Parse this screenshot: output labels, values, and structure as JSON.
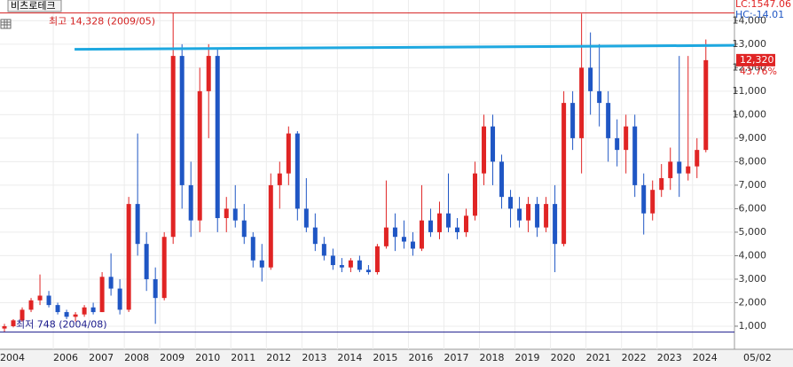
{
  "chart_data": {
    "type": "candlestick",
    "title": "비츠로테크",
    "x": [
      2004.625,
      2004.875,
      2005.125,
      2005.375,
      2005.625,
      2005.875,
      2006.125,
      2006.375,
      2006.625,
      2006.875,
      2007.125,
      2007.375,
      2007.625,
      2007.875,
      2008.125,
      2008.375,
      2008.625,
      2008.875,
      2009.125,
      2009.375,
      2009.625,
      2009.875,
      2010.125,
      2010.375,
      2010.625,
      2010.875,
      2011.125,
      2011.375,
      2011.625,
      2011.875,
      2012.125,
      2012.375,
      2012.625,
      2012.875,
      2013.125,
      2013.375,
      2013.625,
      2013.875,
      2014.125,
      2014.375,
      2014.625,
      2014.875,
      2015.125,
      2015.375,
      2015.625,
      2015.875,
      2016.125,
      2016.375,
      2016.625,
      2016.875,
      2017.125,
      2017.375,
      2017.625,
      2017.875,
      2018.125,
      2018.375,
      2018.625,
      2018.875,
      2019.125,
      2019.375,
      2019.625,
      2019.875,
      2020.125,
      2020.375,
      2020.625,
      2020.875,
      2021.125,
      2021.375,
      2021.625,
      2021.875,
      2022.125,
      2022.375,
      2022.625,
      2022.875,
      2023.125,
      2023.375,
      2023.625,
      2023.875,
      2024.125,
      2024.375
    ],
    "open": [
      900,
      1000,
      1250,
      1700,
      2100,
      2300,
      1900,
      1600,
      1400,
      1500,
      1800,
      1600,
      3100,
      2600,
      1700,
      6200,
      4500,
      3000,
      2200,
      4800,
      12500,
      7000,
      5500,
      11000,
      12500,
      5600,
      6000,
      5500,
      4800,
      3800,
      3500,
      7000,
      7500,
      9200,
      6000,
      5200,
      4500,
      4000,
      3600,
      3500,
      3800,
      3400,
      3300,
      4400,
      5200,
      4800,
      4600,
      4300,
      5500,
      5000,
      5800,
      5200,
      5000,
      5700,
      7500,
      9500,
      8000,
      6500,
      6000,
      5500,
      6200,
      5200,
      6200,
      4500,
      10500,
      9000,
      12000,
      11000,
      10500,
      9000,
      8500,
      9500,
      7000,
      5800,
      6800,
      7300,
      8000,
      7500,
      7800,
      8500
    ],
    "high": [
      1100,
      1300,
      1800,
      2200,
      3200,
      2500,
      2000,
      1700,
      1600,
      1900,
      2000,
      3300,
      4100,
      3000,
      6500,
      9200,
      5000,
      3500,
      5000,
      14328,
      13000,
      8000,
      12000,
      13000,
      12800,
      6500,
      7000,
      6200,
      5000,
      4500,
      7500,
      8000,
      9500,
      9300,
      7300,
      5800,
      4800,
      4300,
      3900,
      3900,
      4000,
      3600,
      4500,
      7200,
      5800,
      5500,
      5000,
      7000,
      6000,
      6300,
      7500,
      5600,
      6000,
      8000,
      10000,
      10000,
      8300,
      6800,
      6500,
      6500,
      6500,
      6500,
      7000,
      11000,
      11000,
      14300,
      13500,
      13000,
      11000,
      9800,
      10000,
      10000,
      7500,
      7200,
      7900,
      8600,
      12500,
      12500,
      9000,
      13200
    ],
    "low": [
      748,
      950,
      1200,
      1600,
      1900,
      1800,
      1500,
      1300,
      1200,
      1400,
      1500,
      1600,
      2300,
      1500,
      1600,
      4000,
      2500,
      1100,
      2100,
      4500,
      6000,
      4800,
      5000,
      9000,
      5000,
      5000,
      5200,
      4500,
      3500,
      2900,
      3400,
      6000,
      7000,
      5500,
      5000,
      4200,
      3800,
      3400,
      3300,
      3300,
      3300,
      3200,
      3200,
      4300,
      4200,
      4300,
      4000,
      4200,
      4800,
      4700,
      5000,
      4700,
      4800,
      5500,
      7000,
      7000,
      6000,
      5200,
      5200,
      5000,
      4800,
      5000,
      3300,
      4400,
      8500,
      7500,
      10000,
      9500,
      8000,
      7800,
      7500,
      6500,
      4900,
      5500,
      6500,
      6800,
      6500,
      7200,
      7300,
      8400
    ],
    "close": [
      1000,
      1250,
      1700,
      2100,
      2300,
      1900,
      1600,
      1400,
      1500,
      1800,
      1600,
      3100,
      2600,
      1700,
      6200,
      4500,
      3000,
      2200,
      4800,
      12500,
      7000,
      5500,
      11000,
      12500,
      5600,
      6000,
      5500,
      4800,
      3800,
      3500,
      7000,
      7500,
      9200,
      6000,
      5200,
      4500,
      4000,
      3600,
      3500,
      3800,
      3400,
      3300,
      4400,
      5200,
      4800,
      4600,
      4300,
      5500,
      5000,
      5800,
      5200,
      5000,
      5700,
      7500,
      9500,
      8000,
      6500,
      6000,
      5500,
      6200,
      5200,
      6200,
      4500,
      10500,
      9000,
      12000,
      11000,
      10500,
      9000,
      8500,
      9500,
      7000,
      5800,
      6800,
      7300,
      8000,
      7500,
      7800,
      8500,
      12320
    ],
    "up_color": "#e02424",
    "down_color": "#1f56c4",
    "xlim": [
      2004.5,
      2025.18
    ],
    "xticks": [
      2004,
      2006,
      2007,
      2008,
      2009,
      2010,
      2011,
      2012,
      2013,
      2014,
      2015,
      2016,
      2017,
      2018,
      2019,
      2020,
      2021,
      2022,
      2023,
      2024
    ],
    "ylim": [
      18,
      14880
    ],
    "yticks": [
      {
        "value": 1000,
        "label": "1,000"
      },
      {
        "value": 2000,
        "label": "2,000"
      },
      {
        "value": 3000,
        "label": "3,000"
      },
      {
        "value": 4000,
        "label": "4,000"
      },
      {
        "value": 5000,
        "label": "5,000"
      },
      {
        "value": 6000,
        "label": "6,000"
      },
      {
        "value": 7000,
        "label": "7,000"
      },
      {
        "value": 8000,
        "label": "8,000"
      },
      {
        "value": 9000,
        "label": "9,000"
      },
      {
        "value": 10000,
        "label": "10,000"
      },
      {
        "value": 11000,
        "label": "11,000"
      },
      {
        "value": 12000,
        "label": "12,000"
      },
      {
        "value": 13000,
        "label": "13,000"
      },
      {
        "value": 14000,
        "label": "14,000"
      }
    ],
    "grid": true,
    "high_marker": {
      "value": 14328,
      "label": "최고 14,328 (2009/05)",
      "color": "#d42020"
    },
    "low_marker": {
      "value": 748,
      "label": "최저 748 (2004/08)",
      "color": "#1a1a8c"
    },
    "trendline": {
      "x": [
        2006.6,
        2025.18
      ],
      "values": [
        12780,
        12950
      ],
      "color": "#1ea8e0"
    },
    "last_price": {
      "value": 12320,
      "label": "12,320"
    },
    "change_label": "43.76%",
    "lc_label": "LC:1547.06",
    "hc_label": "HC:-14.01",
    "date_label": "05/02"
  }
}
